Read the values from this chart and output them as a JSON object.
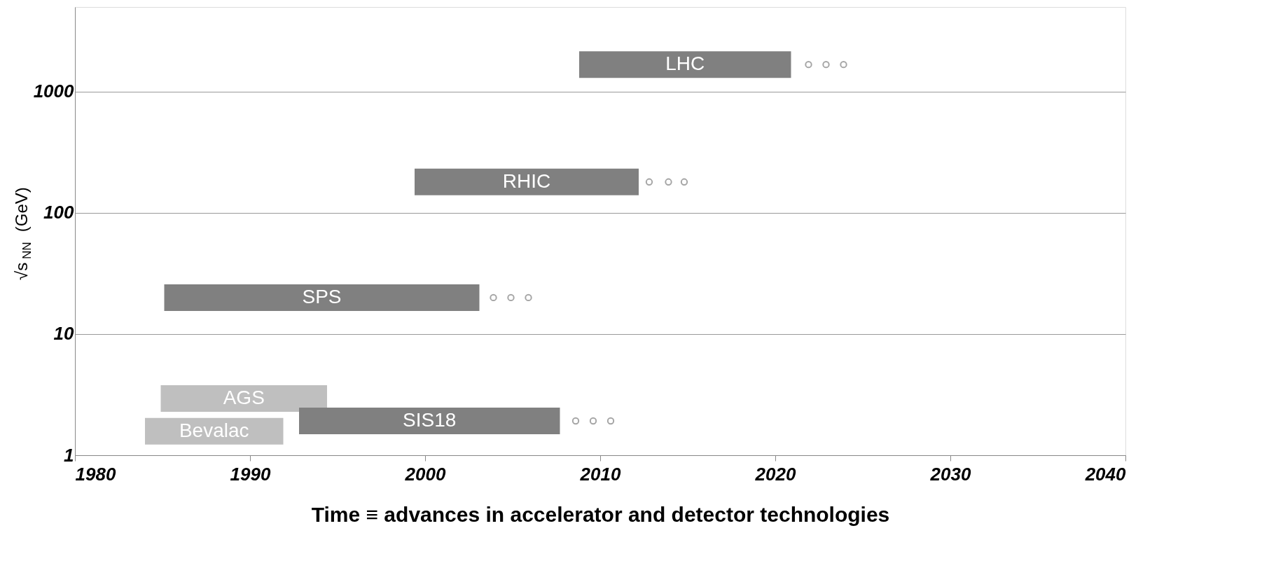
{
  "chart_data": {
    "type": "line",
    "xlabel": "Time ≡ advances in accelerator and detector technologies",
    "ylabel": "√s$_{NN}$ (GeV)",
    "xlim": [
      1980,
      2040
    ],
    "xticks": [
      1980,
      1990,
      2000,
      2010,
      2020,
      2030,
      2040
    ],
    "ylim": [
      1,
      5000
    ],
    "yticks": [
      1,
      10,
      100,
      1000
    ],
    "log": "y",
    "grid": "y",
    "line_style": "solid",
    "series": [
      {
        "name": "LHC",
        "color": "#808080",
        "x": [
          2008.8,
          2020.9
        ],
        "values": [
          1675,
          1675
        ]
      },
      {
        "type": "scatter",
        "marker": "circle",
        "color": "#808080",
        "x": [
          2021.9,
          2022.9,
          2023.9
        ],
        "values": [
          1675,
          1675,
          1675
        ]
      },
      {
        "name": "RHIC",
        "color": "#808080",
        "x": [
          1999.4,
          2012.2
        ],
        "values": [
          180,
          180
        ]
      },
      {
        "type": "scatter",
        "marker": "circle",
        "color": "#808080",
        "x": [
          2012.8,
          2013.9,
          2014.8
        ],
        "values": [
          180,
          180,
          180
        ]
      },
      {
        "name": "SPS",
        "color": "#808080",
        "x": [
          1985.1,
          2003.1
        ],
        "values": [
          20,
          20
        ]
      },
      {
        "type": "scatter",
        "marker": "circle",
        "color": "#808080",
        "x": [
          2003.9,
          2004.9,
          2005.9
        ],
        "values": [
          20,
          20,
          20
        ]
      },
      {
        "name": "AGS",
        "color": "#bfbfbf",
        "x": [
          1984.9,
          1994.4
        ],
        "values": [
          2.94,
          2.94
        ]
      },
      {
        "name": "Bevalac",
        "color": "#bfbfbf",
        "x": [
          1984.0,
          1991.9
        ],
        "values": [
          1.58,
          1.58
        ]
      },
      {
        "name": "SIS18",
        "color": "#808080",
        "x": [
          1992.8,
          2007.7
        ],
        "values": [
          1.92,
          1.92
        ]
      },
      {
        "type": "scatter",
        "marker": "circle",
        "color": "#808080",
        "x": [
          2008.6,
          2009.6,
          2010.6
        ],
        "values": [
          1.92,
          1.92,
          1.92
        ]
      }
    ]
  }
}
